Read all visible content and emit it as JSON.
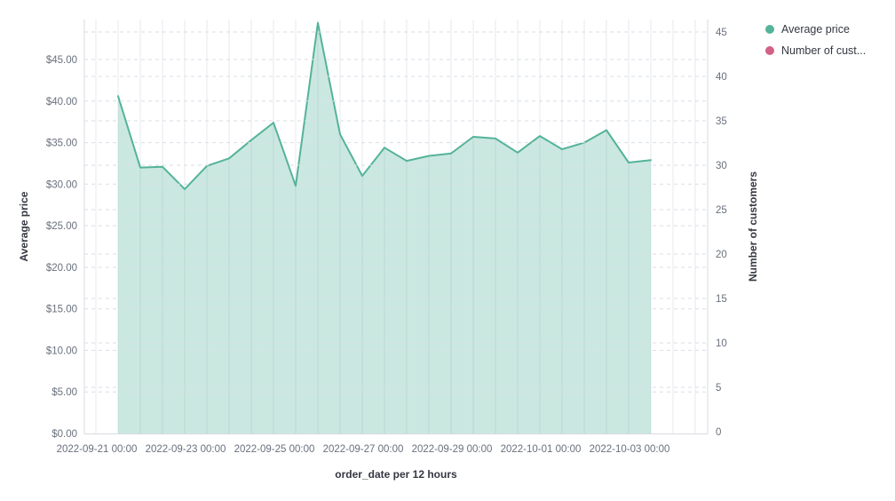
{
  "chart": {
    "background_color": "#ffffff",
    "left_axis": {
      "title": "Average price",
      "tick_values": [
        0,
        5,
        10,
        15,
        20,
        25,
        30,
        35,
        40,
        45
      ],
      "tick_labels": [
        "$0.00",
        "$5.00",
        "$10.00",
        "$15.00",
        "$20.00",
        "$25.00",
        "$30.00",
        "$35.00",
        "$40.00",
        "$45.00"
      ]
    },
    "right_axis": {
      "title": "Number of customers",
      "tick_values": [
        0,
        5,
        10,
        15,
        20,
        25,
        30,
        35,
        40,
        45
      ],
      "tick_labels": [
        "0",
        "5",
        "10",
        "15",
        "20",
        "25",
        "30",
        "35",
        "40",
        "45"
      ]
    },
    "x_axis": {
      "title": "order_date per 12 hours",
      "tick_labels": [
        "2022-09-21 00:00",
        "2022-09-23 00:00",
        "2022-09-25 00:00",
        "2022-09-27 00:00",
        "2022-09-29 00:00",
        "2022-10-01 00:00",
        "2022-10-03 00:00"
      ]
    }
  },
  "legend": {
    "position": "top-right",
    "items": [
      {
        "label": "Average price",
        "color": "#54B399"
      },
      {
        "label": "Number of cust...",
        "color": "#D36086"
      }
    ]
  },
  "chart_data": {
    "type": "area",
    "title": "",
    "xlabel": "order_date per 12 hours",
    "ylabel_left": "Average price",
    "ylabel_right": "Number of customers",
    "ylim_left": [
      0,
      50
    ],
    "ylim_right": [
      0,
      45
    ],
    "grid": true,
    "legend_position": "top-right",
    "x_interval": "12 hours",
    "x": [
      "2022-09-21 12:00",
      "2022-09-22 00:00",
      "2022-09-22 12:00",
      "2022-09-23 00:00",
      "2022-09-23 12:00",
      "2022-09-24 00:00",
      "2022-09-24 12:00",
      "2022-09-25 00:00",
      "2022-09-25 12:00",
      "2022-09-26 00:00",
      "2022-09-26 12:00",
      "2022-09-27 00:00",
      "2022-09-27 12:00",
      "2022-09-28 00:00",
      "2022-09-28 12:00",
      "2022-09-29 00:00",
      "2022-09-29 12:00",
      "2022-09-30 00:00",
      "2022-09-30 12:00",
      "2022-10-01 00:00",
      "2022-10-01 12:00",
      "2022-10-02 00:00",
      "2022-10-02 12:00",
      "2022-10-03 00:00",
      "2022-10-03 12:00"
    ],
    "series": [
      {
        "name": "Average price",
        "axis": "left",
        "color": "#54B399",
        "fill_color": "rgba(84,179,153,0.3)",
        "values": [
          40.6,
          32.0,
          32.1,
          29.4,
          32.2,
          33.1,
          35.3,
          37.4,
          29.8,
          49.4,
          36.0,
          31.0,
          34.4,
          32.8,
          33.4,
          33.7,
          35.7,
          35.5,
          33.8,
          35.8,
          34.2,
          35.0,
          36.5,
          32.6,
          32.9
        ]
      },
      {
        "name": "Number of customers",
        "axis": "right",
        "color": "#D36086",
        "values": []
      }
    ]
  }
}
